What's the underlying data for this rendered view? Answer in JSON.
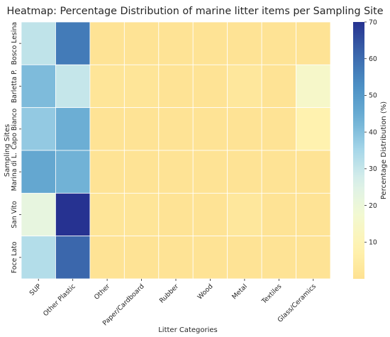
{
  "chart_data": {
    "type": "heatmap",
    "title": "Heatmap: Percentage Distribution of marine litter items per Sampling Site",
    "xlabel": "Litter Categories",
    "ylabel": "Sampling Sites",
    "colorbar_label": "Percentage Distribution (%)",
    "colormap": "YlGnBu",
    "clim": [
      0,
      70
    ],
    "colorbar_ticks": [
      10,
      20,
      30,
      40,
      50,
      60,
      70
    ],
    "x_categories": [
      "SUP",
      "Other Plastic",
      "Other",
      "Paper/Cardboard",
      "Rubber",
      "Wood",
      "Metal",
      "Textiles",
      "Glass/Ceramics"
    ],
    "y_categories": [
      "Bosco Lesina",
      "Barletta P.",
      "Capo Bianco",
      "Marina di L.",
      "San Vito",
      "Foce Lato"
    ],
    "values": [
      [
        31,
        57,
        1,
        1,
        1,
        1,
        1,
        1,
        1
      ],
      [
        41,
        30,
        2,
        2,
        1,
        1,
        3,
        1,
        15
      ],
      [
        38,
        44,
        1,
        1,
        1,
        1,
        1,
        1,
        8
      ],
      [
        46,
        43,
        1,
        1,
        1,
        1,
        1,
        1,
        1
      ],
      [
        22,
        70,
        2,
        2,
        1,
        1,
        3,
        1,
        1
      ],
      [
        33,
        61,
        1,
        1,
        1,
        1,
        1,
        1,
        1
      ]
    ]
  }
}
